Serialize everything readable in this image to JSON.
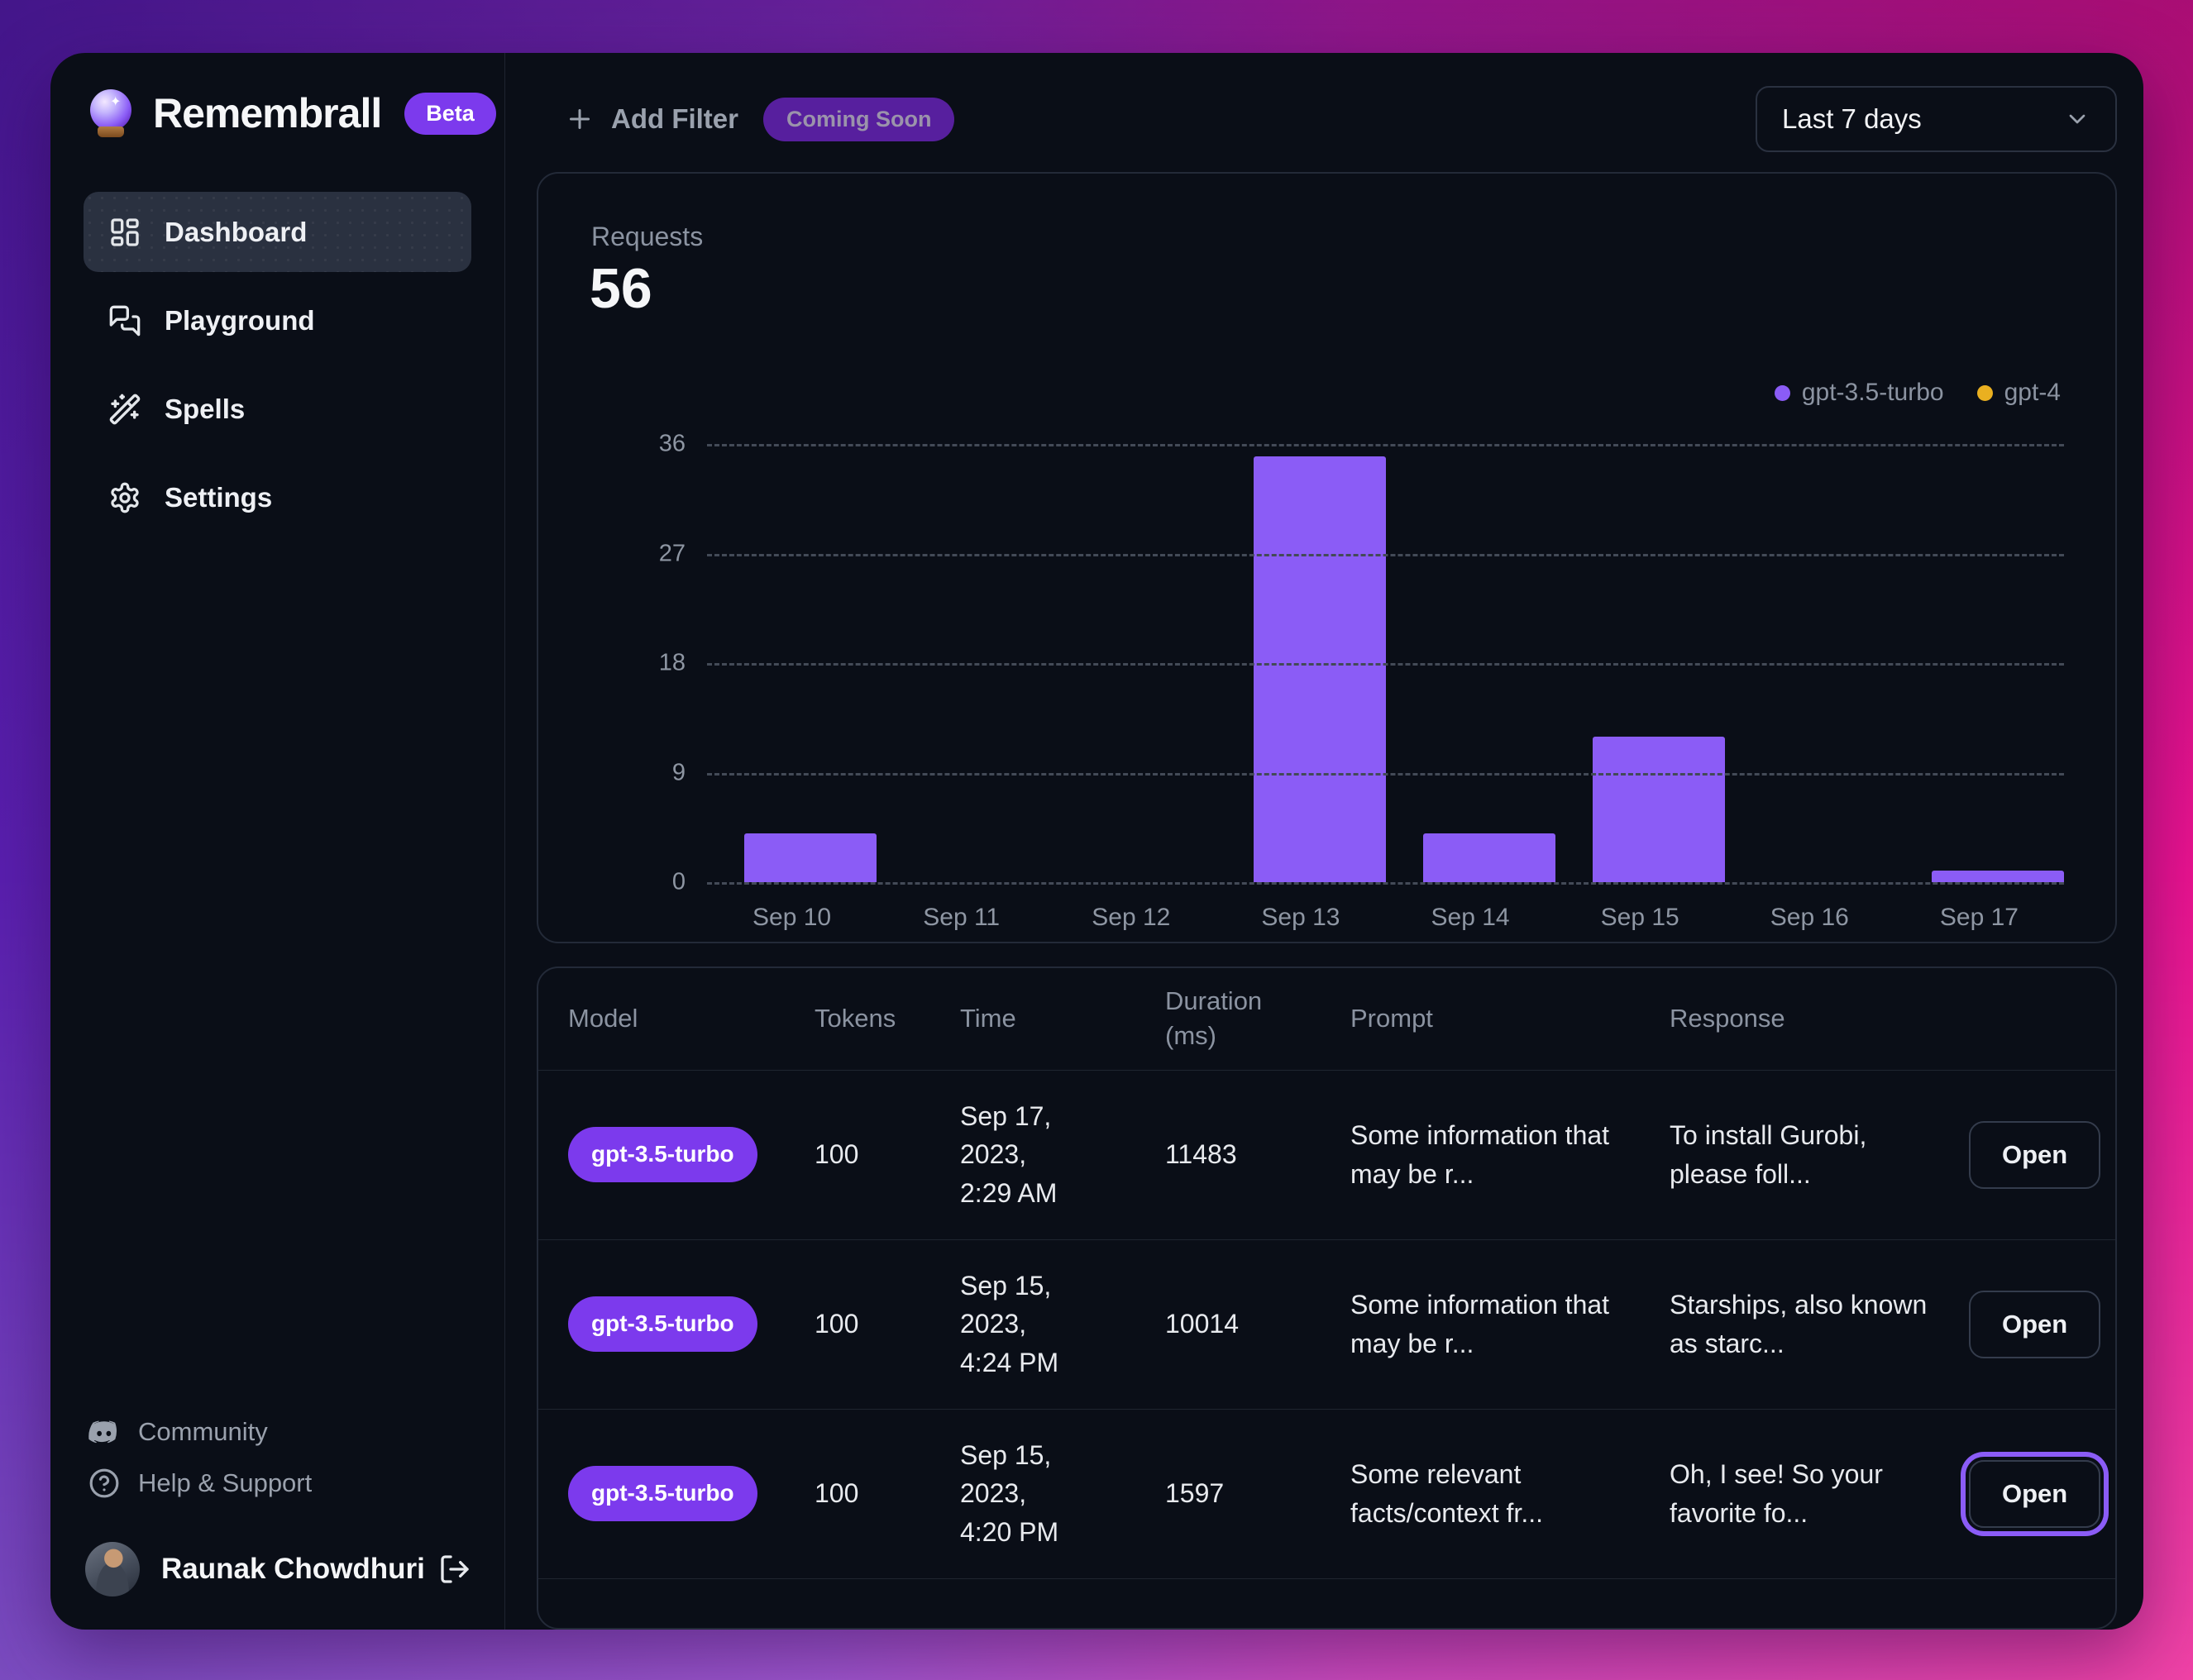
{
  "app": {
    "name": "Remembrall",
    "badge": "Beta"
  },
  "sidebar": {
    "items": [
      {
        "label": "Dashboard",
        "icon": "layout-dashboard-icon",
        "active": true
      },
      {
        "label": "Playground",
        "icon": "chat-bubbles-icon",
        "active": false
      },
      {
        "label": "Spells",
        "icon": "magic-wand-icon",
        "active": false
      },
      {
        "label": "Settings",
        "icon": "gear-icon",
        "active": false
      }
    ],
    "footer_links": [
      {
        "label": "Community",
        "icon": "discord-icon"
      },
      {
        "label": "Help & Support",
        "icon": "help-circle-icon"
      }
    ],
    "user": {
      "name": "Raunak Chowdhuri",
      "logout_icon": "log-out-icon"
    }
  },
  "topbar": {
    "add_filter_label": "Add Filter",
    "coming_soon_badge": "Coming Soon",
    "date_range_value": "Last 7 days"
  },
  "chart_card": {
    "metric_label": "Requests",
    "metric_value": "56"
  },
  "chart_data": {
    "type": "bar",
    "title": "Requests",
    "total": 56,
    "categories": [
      "Sep 10",
      "Sep 11",
      "Sep 12",
      "Sep 13",
      "Sep 14",
      "Sep 15",
      "Sep 16",
      "Sep 17"
    ],
    "series": [
      {
        "name": "gpt-3.5-turbo",
        "color": "#8b5cf6",
        "values": [
          4,
          0,
          0,
          35,
          4,
          12,
          0,
          1
        ]
      },
      {
        "name": "gpt-4",
        "color": "#eab020",
        "values": [
          0,
          0,
          0,
          0,
          0,
          0,
          0,
          0
        ]
      }
    ],
    "xlabel": "",
    "ylabel": "",
    "yticks": [
      0,
      9,
      18,
      27,
      36
    ],
    "ylim": [
      0,
      36
    ],
    "grid": "horizontal-dashed",
    "legend_position": "top-right"
  },
  "table": {
    "columns": [
      "Model",
      "Tokens",
      "Time",
      "Duration (ms)",
      "Prompt",
      "Response"
    ],
    "open_button_label": "Open",
    "rows": [
      {
        "model": "gpt-3.5-turbo",
        "tokens": "100",
        "time": "Sep 17, 2023, 2:29 AM",
        "duration_ms": "11483",
        "prompt": "Some information that may be r...",
        "response": "To install Gurobi, please foll...",
        "open_highlighted": false
      },
      {
        "model": "gpt-3.5-turbo",
        "tokens": "100",
        "time": "Sep 15, 2023, 4:24 PM",
        "duration_ms": "10014",
        "prompt": "Some information that may be r...",
        "response": "Starships, also known as starc...",
        "open_highlighted": false
      },
      {
        "model": "gpt-3.5-turbo",
        "tokens": "100",
        "time": "Sep 15, 2023, 4:20 PM",
        "duration_ms": "1597",
        "prompt": "Some relevant facts/context fr...",
        "response": "Oh, I see! So your favorite fo...",
        "open_highlighted": true
      }
    ]
  },
  "colors": {
    "accent_purple": "#8b5cf6",
    "badge_purple": "#7c3aed",
    "gpt4_yellow": "#eab020",
    "window_bg": "#0a0e17",
    "muted_text": "#8b93a1",
    "gradient_left": "#5a1fb0",
    "gradient_right": "#ec1390"
  }
}
